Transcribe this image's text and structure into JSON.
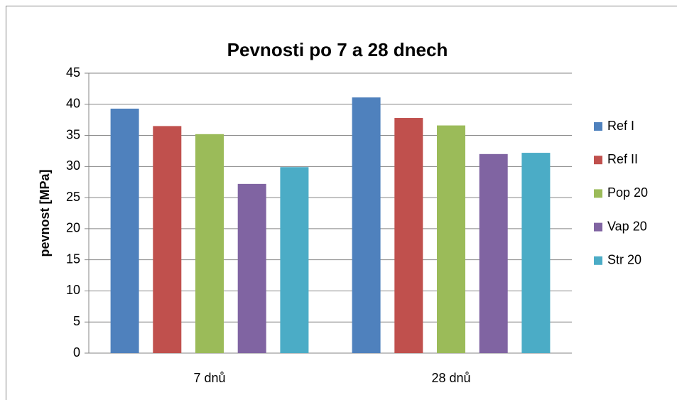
{
  "chart_data": {
    "type": "bar",
    "title": "Pevnosti po 7 a 28 dnech",
    "ylabel": "pevnost [MPa]",
    "categories": [
      "7 dnů",
      "28 dnů"
    ],
    "series": [
      {
        "name": "Ref I",
        "color": "#4f81bd",
        "values": [
          39.3,
          41.1
        ]
      },
      {
        "name": "Ref II",
        "color": "#c0504d",
        "values": [
          36.5,
          37.8
        ]
      },
      {
        "name": "Pop 20",
        "color": "#9bbb59",
        "values": [
          35.2,
          36.6
        ]
      },
      {
        "name": "Vap 20",
        "color": "#8064a2",
        "values": [
          27.2,
          32.0
        ]
      },
      {
        "name": "Str 20",
        "color": "#4bacc6",
        "values": [
          29.9,
          32.2
        ]
      }
    ],
    "ylim": [
      0,
      45
    ],
    "yticks": [
      0,
      5,
      10,
      15,
      20,
      25,
      30,
      35,
      40,
      45
    ],
    "grid": true,
    "legend": "right"
  }
}
